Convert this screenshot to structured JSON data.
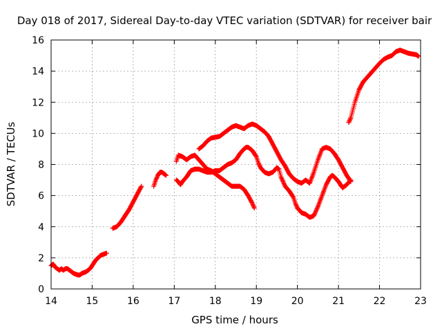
{
  "chart_data": {
    "type": "scatter",
    "title": "Day 018 of 2017, Sidereal Day-to-day VTEC variation (SDTVAR) for receiver bair",
    "xlabel": "GPS time / hours",
    "ylabel": "SDTVAR / TECUs",
    "xlim": [
      14,
      23
    ],
    "ylim": [
      0,
      16
    ],
    "xticks": [
      14,
      15,
      16,
      17,
      18,
      19,
      20,
      21,
      22,
      23
    ],
    "yticks": [
      0,
      2,
      4,
      6,
      8,
      10,
      12,
      14,
      16
    ],
    "grid": true,
    "marker": "plus",
    "color": "#ff0000",
    "series": [
      {
        "name": "seg-1",
        "points": [
          [
            14.0,
            1.5
          ],
          [
            14.05,
            1.6
          ],
          [
            14.1,
            1.4
          ],
          [
            14.15,
            1.3
          ],
          [
            14.2,
            1.2
          ],
          [
            14.25,
            1.3
          ],
          [
            14.3,
            1.2
          ],
          [
            14.35,
            1.3
          ],
          [
            14.4,
            1.3
          ],
          [
            14.45,
            1.2
          ],
          [
            14.5,
            1.1
          ],
          [
            14.55,
            1.0
          ],
          [
            14.6,
            0.95
          ],
          [
            14.65,
            0.9
          ],
          [
            14.7,
            0.9
          ],
          [
            14.75,
            1.0
          ],
          [
            14.8,
            1.05
          ],
          [
            14.85,
            1.1
          ],
          [
            14.9,
            1.2
          ],
          [
            14.95,
            1.3
          ],
          [
            15.0,
            1.5
          ],
          [
            15.05,
            1.7
          ],
          [
            15.1,
            1.9
          ],
          [
            15.15,
            2.0
          ],
          [
            15.2,
            2.15
          ],
          [
            15.25,
            2.2
          ],
          [
            15.3,
            2.25
          ],
          [
            15.35,
            2.3
          ]
        ]
      },
      {
        "name": "seg-2",
        "points": [
          [
            15.5,
            3.9
          ],
          [
            15.6,
            4.0
          ],
          [
            15.7,
            4.3
          ],
          [
            15.8,
            4.7
          ],
          [
            15.9,
            5.1
          ],
          [
            16.0,
            5.6
          ],
          [
            16.1,
            6.1
          ],
          [
            16.2,
            6.6
          ]
        ]
      },
      {
        "name": "seg-3",
        "points": [
          [
            16.5,
            6.6
          ],
          [
            16.55,
            7.0
          ],
          [
            16.6,
            7.3
          ],
          [
            16.65,
            7.5
          ],
          [
            16.7,
            7.5
          ],
          [
            16.75,
            7.4
          ],
          [
            16.8,
            7.3
          ]
        ]
      },
      {
        "name": "seg-4",
        "points": [
          [
            17.05,
            8.2
          ],
          [
            17.1,
            8.6
          ],
          [
            17.2,
            8.5
          ],
          [
            17.3,
            8.3
          ],
          [
            17.4,
            8.5
          ],
          [
            17.5,
            8.6
          ],
          [
            17.6,
            8.3
          ],
          [
            17.7,
            8.0
          ],
          [
            17.8,
            7.7
          ],
          [
            17.9,
            7.6
          ],
          [
            18.0,
            7.4
          ],
          [
            18.2,
            7.0
          ],
          [
            18.4,
            6.6
          ],
          [
            18.6,
            6.6
          ],
          [
            18.7,
            6.4
          ],
          [
            18.8,
            6.0
          ],
          [
            18.9,
            5.5
          ],
          [
            18.95,
            5.2
          ]
        ]
      },
      {
        "name": "seg-5",
        "points": [
          [
            17.05,
            7.0
          ],
          [
            17.1,
            6.9
          ],
          [
            17.15,
            6.7
          ],
          [
            17.2,
            6.9
          ],
          [
            17.3,
            7.2
          ],
          [
            17.4,
            7.6
          ],
          [
            17.5,
            7.7
          ],
          [
            17.6,
            7.7
          ],
          [
            17.7,
            7.6
          ],
          [
            17.8,
            7.5
          ],
          [
            17.9,
            7.5
          ],
          [
            18.0,
            7.6
          ],
          [
            18.1,
            7.6
          ],
          [
            18.2,
            7.8
          ],
          [
            18.3,
            8.0
          ],
          [
            18.4,
            8.1
          ],
          [
            18.5,
            8.3
          ],
          [
            18.6,
            8.7
          ],
          [
            18.7,
            9.0
          ],
          [
            18.75,
            9.1
          ],
          [
            18.8,
            9.1
          ],
          [
            18.9,
            8.9
          ],
          [
            19.0,
            8.5
          ],
          [
            19.05,
            8.1
          ],
          [
            19.1,
            7.8
          ],
          [
            19.2,
            7.5
          ],
          [
            19.3,
            7.4
          ],
          [
            19.4,
            7.5
          ],
          [
            19.5,
            7.8
          ],
          [
            19.55,
            7.7
          ],
          [
            19.6,
            7.2
          ],
          [
            19.7,
            6.6
          ],
          [
            19.8,
            6.3
          ],
          [
            19.9,
            5.9
          ],
          [
            19.95,
            5.5
          ],
          [
            20.0,
            5.2
          ],
          [
            20.1,
            4.9
          ],
          [
            20.2,
            4.8
          ],
          [
            20.25,
            4.7
          ],
          [
            20.3,
            4.6
          ],
          [
            20.4,
            4.7
          ],
          [
            20.5,
            5.3
          ],
          [
            20.6,
            6.0
          ],
          [
            20.7,
            6.7
          ],
          [
            20.8,
            7.2
          ],
          [
            20.85,
            7.3
          ],
          [
            20.9,
            7.2
          ],
          [
            21.0,
            6.9
          ],
          [
            21.1,
            6.5
          ],
          [
            21.2,
            6.7
          ],
          [
            21.3,
            7.0
          ]
        ]
      },
      {
        "name": "seg-6",
        "points": [
          [
            17.6,
            9.0
          ],
          [
            17.7,
            9.2
          ],
          [
            17.8,
            9.5
          ],
          [
            17.9,
            9.7
          ],
          [
            18.0,
            9.75
          ],
          [
            18.1,
            9.8
          ],
          [
            18.2,
            10.0
          ],
          [
            18.3,
            10.2
          ],
          [
            18.4,
            10.4
          ],
          [
            18.5,
            10.5
          ],
          [
            18.6,
            10.4
          ],
          [
            18.7,
            10.3
          ],
          [
            18.8,
            10.5
          ],
          [
            18.9,
            10.6
          ],
          [
            19.0,
            10.5
          ],
          [
            19.1,
            10.3
          ],
          [
            19.2,
            10.1
          ],
          [
            19.3,
            9.8
          ],
          [
            19.4,
            9.3
          ],
          [
            19.5,
            8.8
          ],
          [
            19.6,
            8.3
          ],
          [
            19.7,
            7.9
          ],
          [
            19.8,
            7.4
          ],
          [
            19.9,
            7.1
          ],
          [
            20.0,
            6.9
          ],
          [
            20.1,
            6.8
          ],
          [
            20.2,
            7.0
          ],
          [
            20.3,
            6.8
          ],
          [
            20.4,
            7.5
          ],
          [
            20.5,
            8.3
          ],
          [
            20.6,
            9.0
          ],
          [
            20.7,
            9.1
          ],
          [
            20.8,
            9.0
          ],
          [
            20.9,
            8.7
          ],
          [
            21.0,
            8.3
          ],
          [
            21.1,
            7.8
          ],
          [
            21.2,
            7.3
          ],
          [
            21.3,
            6.9
          ]
        ]
      },
      {
        "name": "seg-7",
        "points": [
          [
            21.25,
            10.7
          ],
          [
            21.3,
            11.0
          ],
          [
            21.35,
            11.5
          ],
          [
            21.4,
            12.0
          ],
          [
            21.45,
            12.4
          ],
          [
            21.5,
            12.8
          ],
          [
            21.6,
            13.3
          ],
          [
            21.7,
            13.6
          ],
          [
            21.8,
            13.9
          ],
          [
            21.9,
            14.2
          ],
          [
            22.0,
            14.5
          ],
          [
            22.1,
            14.75
          ],
          [
            22.2,
            14.9
          ],
          [
            22.3,
            15.0
          ],
          [
            22.4,
            15.25
          ],
          [
            22.5,
            15.35
          ],
          [
            22.6,
            15.25
          ],
          [
            22.7,
            15.15
          ],
          [
            22.8,
            15.1
          ],
          [
            22.9,
            15.05
          ],
          [
            22.95,
            14.95
          ]
        ]
      }
    ]
  }
}
